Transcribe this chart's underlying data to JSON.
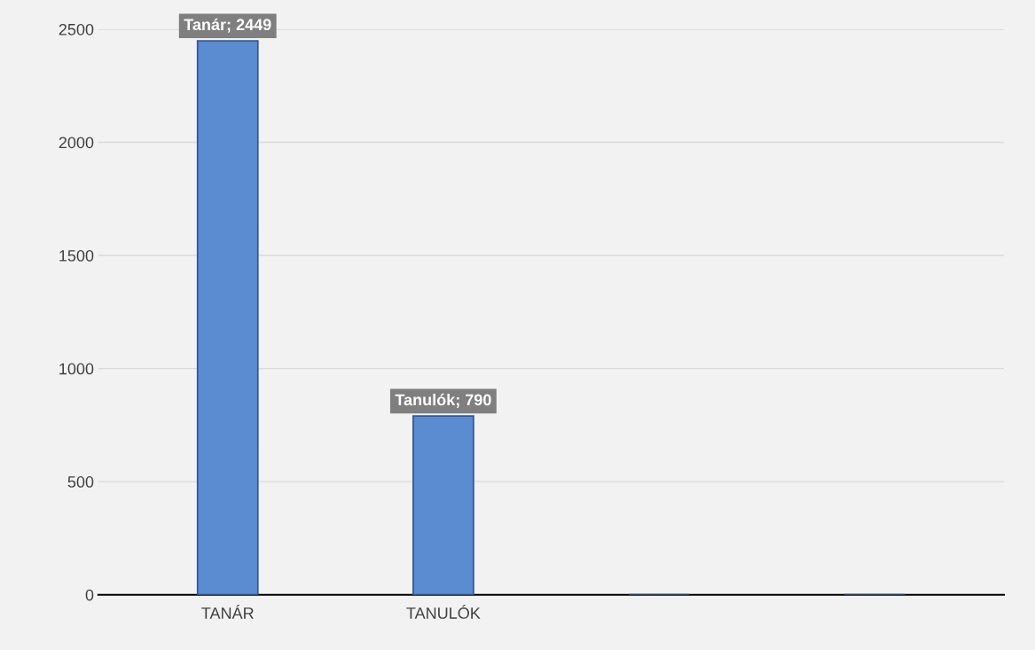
{
  "chart_data": {
    "type": "bar",
    "categories": [
      "TANÁR",
      "TANULÓK",
      null,
      null
    ],
    "values": [
      2449,
      790,
      null,
      null
    ],
    "value_labels": [
      "Tanár; 2449",
      "Tanulók; 790",
      null,
      null
    ],
    "color": "#5b8bd0",
    "ylim": [
      0,
      2500
    ],
    "yticks": [
      0,
      500,
      1000,
      1500,
      2000,
      2500
    ],
    "grid": "y",
    "legend": false
  }
}
